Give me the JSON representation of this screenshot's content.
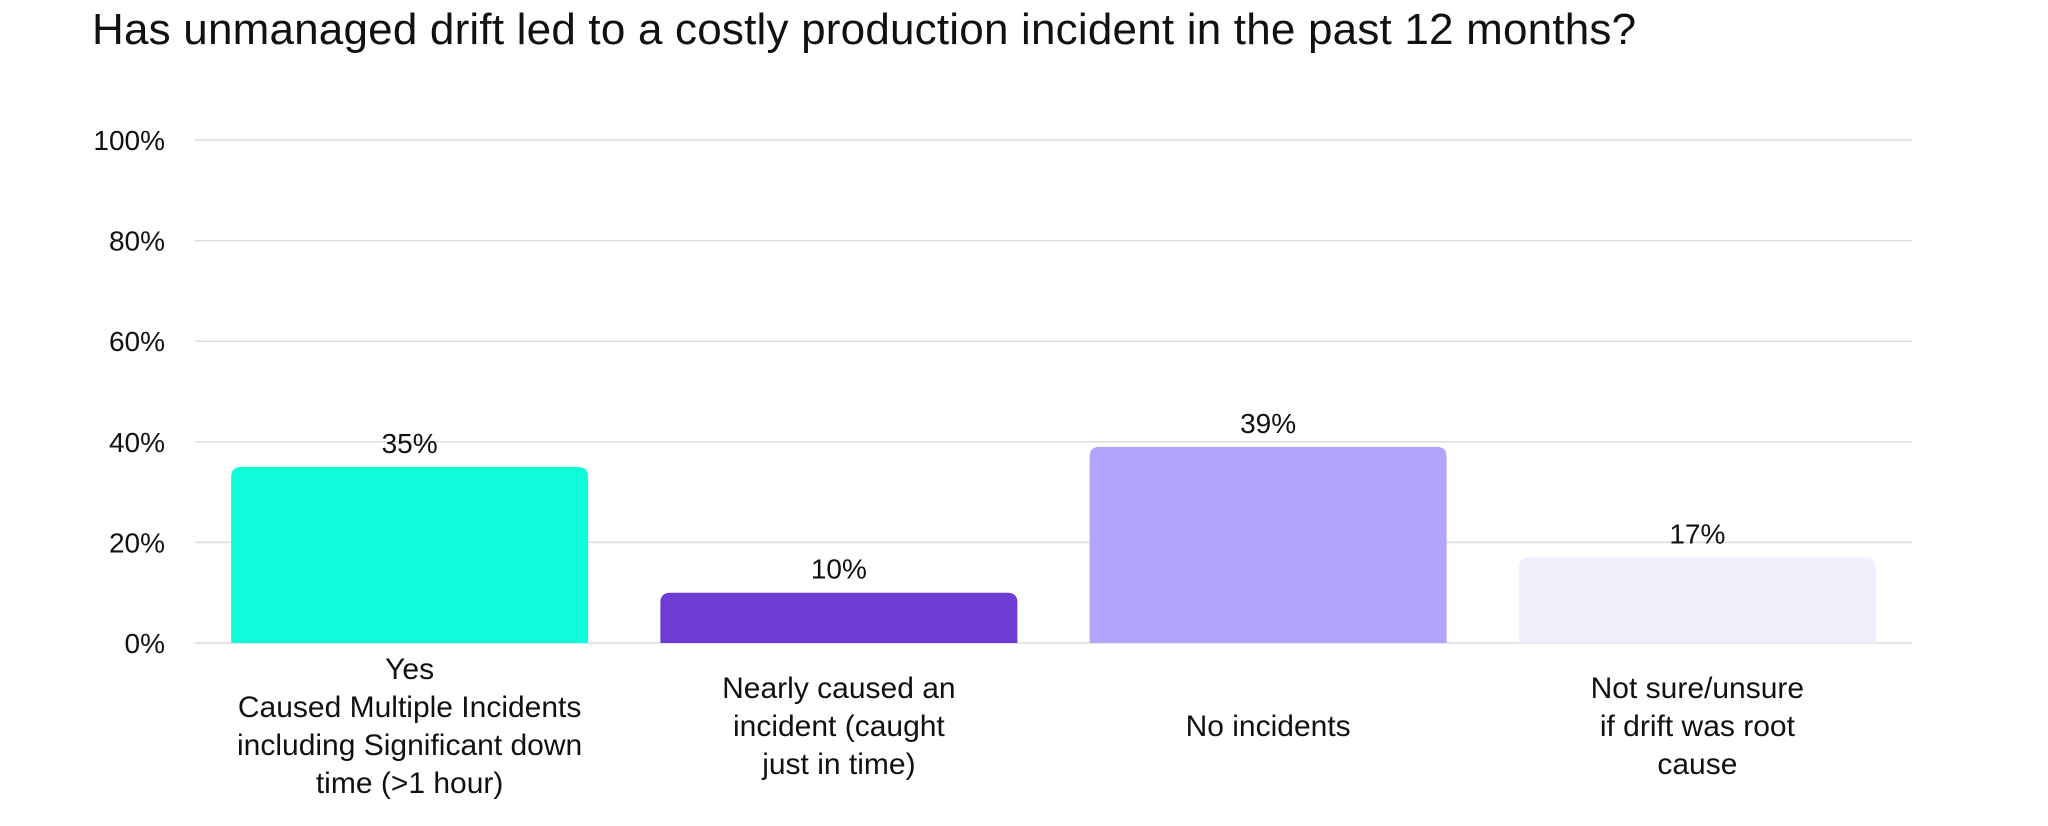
{
  "chart_data": {
    "type": "bar",
    "title": "Has unmanaged drift led to a costly production incident in the past 12 months?",
    "categories": [
      [
        "Yes",
        "Caused Multiple Incidents",
        "including Significant down",
        "time (>1 hour)"
      ],
      [
        "Nearly caused an",
        "incident (caught",
        "just in time)"
      ],
      [
        "No incidents"
      ],
      [
        "Not sure/unsure",
        "if drift was root",
        "cause"
      ]
    ],
    "values": [
      35,
      10,
      39,
      17
    ],
    "data_labels": [
      "35%",
      "10%",
      "39%",
      "17%"
    ],
    "bar_colors": [
      "#0FFCDB",
      "#6E3BD4",
      "#B3A4FE",
      "#F2EFFC"
    ],
    "ylim": [
      0,
      100
    ],
    "y_ticks": [
      0,
      20,
      40,
      60,
      80,
      100
    ],
    "y_tick_labels": [
      "0%",
      "20%",
      "40%",
      "60%",
      "80%",
      "100%"
    ],
    "grid": true,
    "grid_color": "#DEDEDE",
    "legend": "none",
    "xlabel": "",
    "ylabel": ""
  }
}
